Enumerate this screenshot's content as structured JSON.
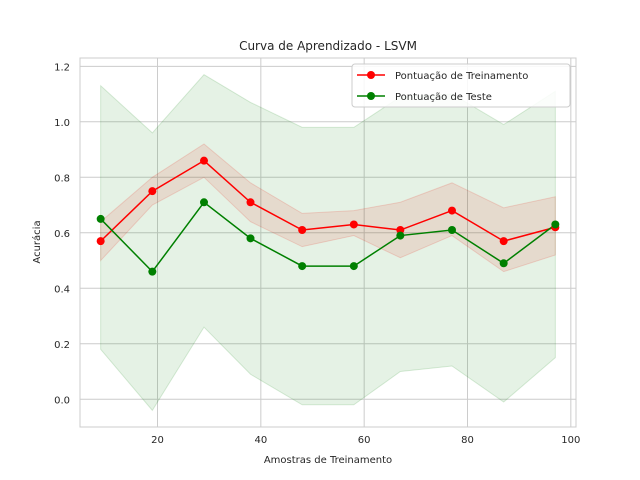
{
  "chart_data": {
    "type": "line",
    "title": "Curva de Aprendizado - LSVM",
    "xlabel": "Amostras de Treinamento",
    "ylabel": "Acurácia",
    "xlim": [
      5,
      101
    ],
    "ylim": [
      -0.1,
      1.23
    ],
    "xticks": [
      20,
      40,
      60,
      80,
      100
    ],
    "yticks": [
      0.0,
      0.2,
      0.4,
      0.6,
      0.8,
      1.0,
      1.2
    ],
    "xtick_labels": [
      "20",
      "40",
      "60",
      "80",
      "100"
    ],
    "ytick_labels": [
      "0.0",
      "0.2",
      "0.4",
      "0.6",
      "0.8",
      "1.0",
      "1.2"
    ],
    "grid": true,
    "legend_position": "top-right",
    "x": [
      9,
      19,
      29,
      38,
      48,
      58,
      67,
      77,
      87,
      97
    ],
    "series": [
      {
        "name": "Pontuação de Treinamento",
        "color": "#ff0000",
        "band_color": "#ff0000",
        "values": [
          0.57,
          0.75,
          0.86,
          0.71,
          0.61,
          0.63,
          0.61,
          0.68,
          0.57,
          0.62
        ],
        "lower": [
          0.5,
          0.7,
          0.8,
          0.64,
          0.55,
          0.59,
          0.51,
          0.59,
          0.46,
          0.52
        ],
        "upper": [
          0.64,
          0.8,
          0.92,
          0.78,
          0.67,
          0.68,
          0.71,
          0.78,
          0.69,
          0.73
        ]
      },
      {
        "name": "Pontuação de Teste",
        "color": "#008000",
        "band_color": "#008000",
        "values": [
          0.65,
          0.46,
          0.71,
          0.58,
          0.48,
          0.48,
          0.59,
          0.61,
          0.49,
          0.63
        ],
        "lower": [
          0.18,
          -0.04,
          0.26,
          0.09,
          -0.02,
          -0.02,
          0.1,
          0.12,
          -0.01,
          0.15
        ],
        "upper": [
          1.13,
          0.96,
          1.17,
          1.07,
          0.98,
          0.98,
          1.09,
          1.1,
          0.99,
          1.11
        ]
      }
    ]
  }
}
